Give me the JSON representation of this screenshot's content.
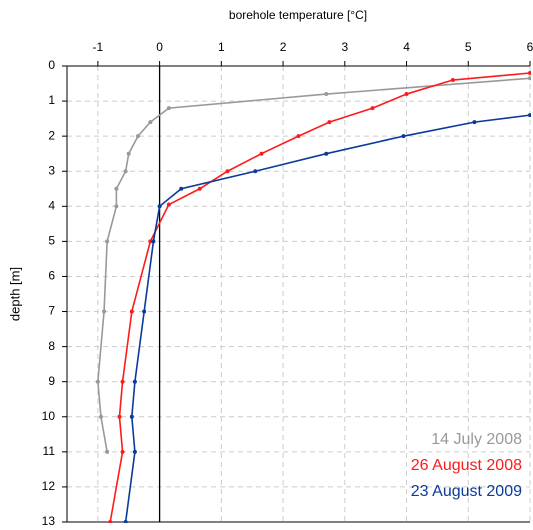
{
  "chart_data": {
    "type": "line",
    "xlabel": "borehole temperature [°C]",
    "ylabel": "depth [m]",
    "xlim": [
      -1.5,
      6
    ],
    "xticks": [
      -1,
      0,
      1,
      2,
      3,
      4,
      5,
      6
    ],
    "ylim": [
      0,
      13
    ],
    "yticks": [
      0,
      1,
      2,
      3,
      4,
      5,
      6,
      7,
      8,
      9,
      10,
      11,
      12,
      13
    ],
    "inverted_y": true,
    "grid": true,
    "legend": "lower right",
    "series": [
      {
        "name": "14 July 2008",
        "color": "#999999",
        "x": [
          6,
          2.7,
          0.15,
          -0.15,
          -0.35,
          -0.5,
          -0.55,
          -0.7,
          -0.7,
          -0.85,
          -0.9,
          -1.0,
          -0.95,
          -0.85
        ],
        "y": [
          0.35,
          0.8,
          1.2,
          1.6,
          2.0,
          2.5,
          3.0,
          3.5,
          4.0,
          5.0,
          7.0,
          9.0,
          10.0,
          11.0
        ]
      },
      {
        "name": "26 August 2008",
        "color": "#ff1a1a",
        "x": [
          6,
          4.75,
          4.0,
          3.45,
          2.75,
          2.25,
          1.65,
          1.1,
          0.65,
          0.15,
          -0.15,
          -0.45,
          -0.6,
          -0.65,
          -0.6,
          -0.8
        ],
        "y": [
          0.2,
          0.4,
          0.8,
          1.2,
          1.6,
          2.0,
          2.5,
          3.0,
          3.5,
          3.95,
          5.0,
          7.0,
          9.0,
          10.0,
          11.0,
          13.0
        ]
      },
      {
        "name": "23 August 2009",
        "color": "#0b3a9a",
        "x": [
          6,
          5.1,
          3.95,
          2.7,
          1.55,
          0.35,
          0,
          -0.1,
          -0.25,
          -0.4,
          -0.45,
          -0.4,
          -0.55
        ],
        "y": [
          1.4,
          1.6,
          2.0,
          2.5,
          3.0,
          3.5,
          4.0,
          5.0,
          7.0,
          9.0,
          10.0,
          11.0,
          13.0
        ]
      }
    ]
  }
}
